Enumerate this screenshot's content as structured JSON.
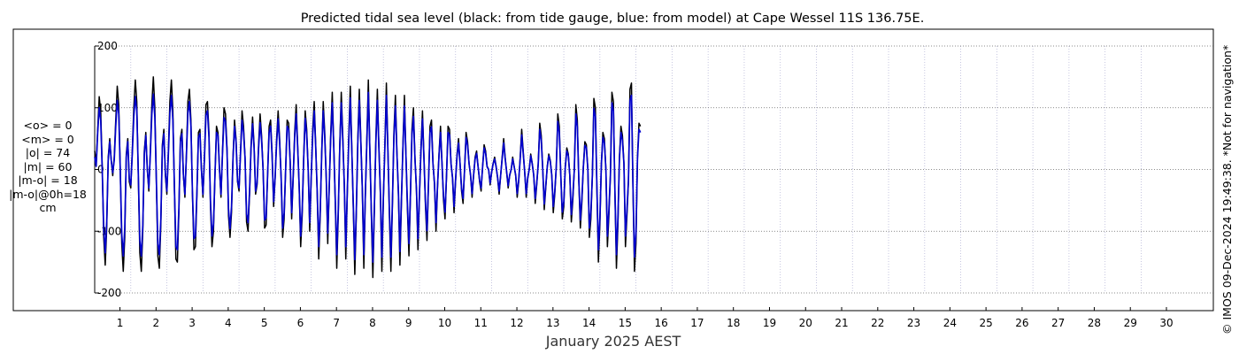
{
  "chart_data": {
    "type": "line",
    "title": "Predicted tidal sea level (black: from tide gauge, blue: from model) at Cape Wessel 11S 136.75E.",
    "xlabel": "January 2025 AEST",
    "ylabel": "",
    "ylim": [
      -200,
      200
    ],
    "yticks": [
      -200,
      -100,
      0,
      100,
      200
    ],
    "xlim": [
      0.3,
      31.3
    ],
    "xticks": [
      1,
      2,
      3,
      4,
      5,
      6,
      7,
      8,
      9,
      10,
      11,
      12,
      13,
      14,
      15,
      16,
      17,
      18,
      19,
      20,
      21,
      22,
      23,
      24,
      25,
      26,
      27,
      28,
      29,
      30
    ],
    "grid": true,
    "sampling_per_day": 24,
    "series": [
      {
        "name": "tide gauge",
        "color": "#000000",
        "values": [
          30,
          10,
          65,
          118,
          95,
          5,
          -110,
          -155,
          -95,
          20,
          50,
          15,
          -10,
          20,
          80,
          135,
          105,
          0,
          -120,
          -165,
          -110,
          25,
          50,
          -20,
          -30,
          30,
          100,
          145,
          110,
          -10,
          -135,
          -165,
          -100,
          30,
          60,
          0,
          -35,
          30,
          105,
          150,
          100,
          -20,
          -140,
          -160,
          -90,
          40,
          65,
          -10,
          -40,
          30,
          110,
          145,
          95,
          -30,
          -145,
          -150,
          -70,
          50,
          65,
          -10,
          -45,
          25,
          110,
          130,
          80,
          -40,
          -130,
          -125,
          -40,
          60,
          65,
          0,
          -45,
          20,
          105,
          110,
          60,
          -60,
          -125,
          -100,
          -10,
          70,
          60,
          0,
          -45,
          30,
          100,
          90,
          35,
          -75,
          -110,
          -70,
          20,
          80,
          50,
          -20,
          -35,
          30,
          95,
          70,
          20,
          -85,
          -100,
          -40,
          40,
          85,
          40,
          -40,
          -25,
          40,
          90,
          55,
          0,
          -95,
          -90,
          -10,
          70,
          80,
          25,
          -60,
          -15,
          50,
          95,
          50,
          -15,
          -110,
          -80,
          0,
          80,
          75,
          15,
          -80,
          -15,
          60,
          105,
          40,
          -30,
          -125,
          -75,
          20,
          95,
          65,
          0,
          -100,
          -15,
          65,
          110,
          40,
          -40,
          -145,
          -75,
          30,
          110,
          60,
          -15,
          -120,
          -30,
          60,
          125,
          40,
          -55,
          -160,
          -75,
          40,
          125,
          55,
          -25,
          -145,
          -40,
          55,
          135,
          35,
          -65,
          -170,
          -75,
          50,
          130,
          50,
          -35,
          -160,
          -45,
          50,
          145,
          35,
          -75,
          -175,
          -70,
          50,
          130,
          40,
          -40,
          -165,
          -50,
          40,
          140,
          35,
          -75,
          -165,
          -60,
          60,
          120,
          30,
          -40,
          -155,
          -55,
          40,
          120,
          25,
          -65,
          -140,
          -45,
          65,
          100,
          20,
          -35,
          -130,
          -45,
          35,
          95,
          20,
          -60,
          -115,
          -25,
          70,
          80,
          10,
          -25,
          -100,
          -30,
          25,
          70,
          10,
          -50,
          -80,
          -10,
          70,
          65,
          10,
          -15,
          -70,
          -20,
          25,
          50,
          10,
          -35,
          -55,
          0,
          60,
          45,
          10,
          -10,
          -45,
          -10,
          20,
          30,
          5,
          -20,
          -35,
          5,
          40,
          30,
          5,
          0,
          -25,
          -5,
          10,
          20,
          5,
          -15,
          -40,
          -10,
          20,
          50,
          20,
          -5,
          -30,
          -10,
          0,
          20,
          5,
          -10,
          -45,
          -20,
          20,
          65,
          30,
          -5,
          -45,
          -15,
          0,
          25,
          10,
          -10,
          -55,
          -25,
          10,
          75,
          55,
          0,
          -65,
          -30,
          5,
          25,
          15,
          -10,
          -70,
          -40,
          5,
          90,
          70,
          -10,
          -80,
          -60,
          5,
          35,
          25,
          -10,
          -85,
          -50,
          0,
          105,
          80,
          -20,
          -95,
          -55,
          5,
          45,
          40,
          0,
          -110,
          -80,
          -10,
          115,
          100,
          -30,
          -150,
          -90,
          10,
          60,
          50,
          0,
          -125,
          -75,
          -10,
          125,
          110,
          -40,
          -160,
          -90,
          20,
          70,
          55,
          10,
          -125,
          -75,
          -20,
          130,
          140,
          -30,
          -165,
          -120,
          20,
          75,
          70
        ]
      },
      {
        "name": "model",
        "color": "#0000cc",
        "values": [
          20,
          5,
          60,
          100,
          80,
          0,
          -95,
          -135,
          -85,
          15,
          45,
          15,
          -5,
          15,
          70,
          112,
          90,
          0,
          -105,
          -140,
          -95,
          20,
          45,
          -15,
          -25,
          25,
          85,
          118,
          95,
          -5,
          -115,
          -140,
          -90,
          25,
          55,
          0,
          -30,
          25,
          90,
          122,
          85,
          -15,
          -120,
          -138,
          -80,
          35,
          58,
          -5,
          -35,
          25,
          92,
          120,
          80,
          -25,
          -125,
          -130,
          -62,
          45,
          58,
          -8,
          -40,
          22,
          92,
          110,
          70,
          -35,
          -112,
          -108,
          -35,
          52,
          58,
          0,
          -40,
          18,
          88,
          95,
          52,
          -50,
          -108,
          -88,
          -8,
          60,
          55,
          0,
          -40,
          26,
          84,
          78,
          30,
          -64,
          -96,
          -60,
          18,
          70,
          45,
          -18,
          -30,
          26,
          80,
          60,
          18,
          -72,
          -86,
          -35,
          35,
          74,
          35,
          -35,
          -22,
          34,
          76,
          48,
          0,
          -82,
          -78,
          -8,
          60,
          70,
          22,
          -52,
          -12,
          43,
          82,
          43,
          -12,
          -95,
          -70,
          0,
          70,
          65,
          13,
          -70,
          -12,
          52,
          90,
          35,
          -26,
          -108,
          -65,
          17,
          83,
          56,
          0,
          -86,
          -12,
          56,
          95,
          35,
          -35,
          -125,
          -65,
          26,
          95,
          52,
          -13,
          -103,
          -26,
          52,
          108,
          35,
          -47,
          -138,
          -65,
          35,
          108,
          47,
          -22,
          -125,
          -35,
          47,
          116,
          30,
          -56,
          -146,
          -65,
          43,
          112,
          43,
          -30,
          -138,
          -39,
          43,
          125,
          30,
          -65,
          -150,
          -60,
          43,
          112,
          35,
          -35,
          -142,
          -43,
          35,
          120,
          30,
          -65,
          -142,
          -52,
          52,
          103,
          26,
          -35,
          -133,
          -47,
          35,
          103,
          22,
          -56,
          -120,
          -39,
          56,
          86,
          17,
          -30,
          -112,
          -39,
          30,
          82,
          17,
          -52,
          -99,
          -22,
          60,
          69,
          9,
          -22,
          -86,
          -26,
          22,
          60,
          9,
          -43,
          -69,
          -9,
          60,
          56,
          9,
          -13,
          -60,
          -17,
          22,
          43,
          9,
          -30,
          -47,
          0,
          52,
          39,
          9,
          -9,
          -39,
          -9,
          17,
          26,
          4,
          -17,
          -30,
          4,
          35,
          26,
          4,
          0,
          -22,
          -4,
          9,
          17,
          4,
          -13,
          -35,
          -9,
          17,
          43,
          17,
          -4,
          -26,
          -9,
          0,
          17,
          4,
          -9,
          -39,
          -17,
          17,
          56,
          26,
          -4,
          -39,
          -13,
          0,
          22,
          9,
          -9,
          -47,
          -22,
          9,
          65,
          47,
          0,
          -56,
          -26,
          4,
          22,
          13,
          -9,
          -60,
          -35,
          4,
          78,
          60,
          -9,
          -69,
          -52,
          4,
          30,
          22,
          -9,
          -73,
          -43,
          0,
          90,
          69,
          -17,
          -82,
          -47,
          4,
          39,
          35,
          0,
          -95,
          -69,
          -9,
          99,
          86,
          -26,
          -130,
          -78,
          9,
          52,
          43,
          0,
          -108,
          -65,
          -9,
          108,
          95,
          -35,
          -138,
          -78,
          17,
          60,
          47,
          9,
          -108,
          -65,
          -17,
          112,
          120,
          -26,
          -142,
          -103,
          17,
          65,
          60
        ]
      }
    ]
  },
  "stats": {
    "mean_obs": "<o> = 0",
    "mean_model": "<m> = 0",
    "abs_obs": "|o| = 74",
    "abs_model": "|m| = 60",
    "abs_diff": "|m-o| = 18",
    "abs_diff_0h": "|m-o|@0h=18",
    "unit": "cm"
  },
  "footer": {
    "copyright": "© IMOS 09-Dec-2024 19:49:38. *Not for navigation*"
  }
}
